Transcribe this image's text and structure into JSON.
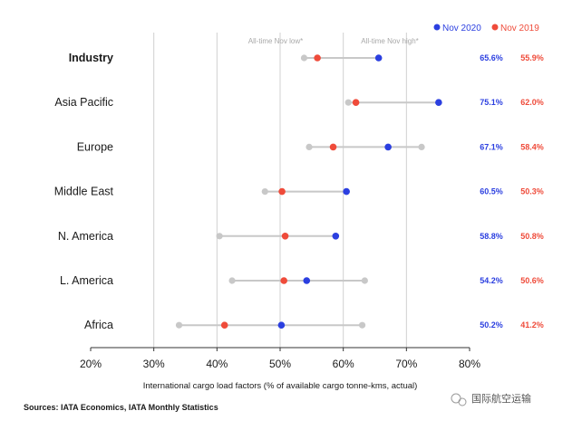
{
  "chart_data": {
    "type": "dot-range",
    "legend": [
      {
        "label": "Nov 2020",
        "color": "#2b3fe0"
      },
      {
        "label": "Nov 2019",
        "color": "#ef4b3a"
      }
    ],
    "annotations": {
      "low": "All-time Nov low*",
      "high": "All-time Nov high*"
    },
    "xlim": [
      20,
      80
    ],
    "xticks": [
      "20%",
      "30%",
      "40%",
      "50%",
      "60%",
      "70%",
      "80%"
    ],
    "xlabel": "International cargo load factors (% of available cargo tonne-kms, actual)",
    "source": "Sources: IATA Economics, IATA Monthly Statistics",
    "colors": {
      "nov2020": "#2b3fe0",
      "nov2019": "#ef4b3a",
      "range": "#c8c8c8",
      "grid": "#d0d0d0"
    },
    "rows": [
      {
        "region": "Industry",
        "bold": true,
        "low": 53.8,
        "high": 65.6,
        "nov2020": 65.6,
        "nov2019": 55.9,
        "nov2020_label": "65.6%",
        "nov2019_label": "55.9%"
      },
      {
        "region": "Asia Pacific",
        "bold": false,
        "low": 60.8,
        "high": 75.1,
        "nov2020": 75.1,
        "nov2019": 62.0,
        "nov2020_label": "75.1%",
        "nov2019_label": "62.0%"
      },
      {
        "region": "Europe",
        "bold": false,
        "low": 54.6,
        "high": 72.4,
        "nov2020": 67.1,
        "nov2019": 58.4,
        "nov2020_label": "67.1%",
        "nov2019_label": "58.4%"
      },
      {
        "region": "Middle East",
        "bold": false,
        "low": 47.6,
        "high": 60.5,
        "nov2020": 60.5,
        "nov2019": 50.3,
        "nov2020_label": "60.5%",
        "nov2019_label": "50.3%"
      },
      {
        "region": "N. America",
        "bold": false,
        "low": 40.4,
        "high": 58.8,
        "nov2020": 58.8,
        "nov2019": 50.8,
        "nov2020_label": "58.8%",
        "nov2019_label": "50.8%"
      },
      {
        "region": "L. America",
        "bold": false,
        "low": 42.4,
        "high": 63.4,
        "nov2020": 54.2,
        "nov2019": 50.6,
        "nov2020_label": "54.2%",
        "nov2019_label": "50.6%"
      },
      {
        "region": "Africa",
        "bold": false,
        "low": 34.0,
        "high": 63.0,
        "nov2020": 50.2,
        "nov2019": 41.2,
        "nov2020_label": "50.2%",
        "nov2019_label": "41.2%"
      }
    ]
  },
  "watermark": "国际航空运输"
}
